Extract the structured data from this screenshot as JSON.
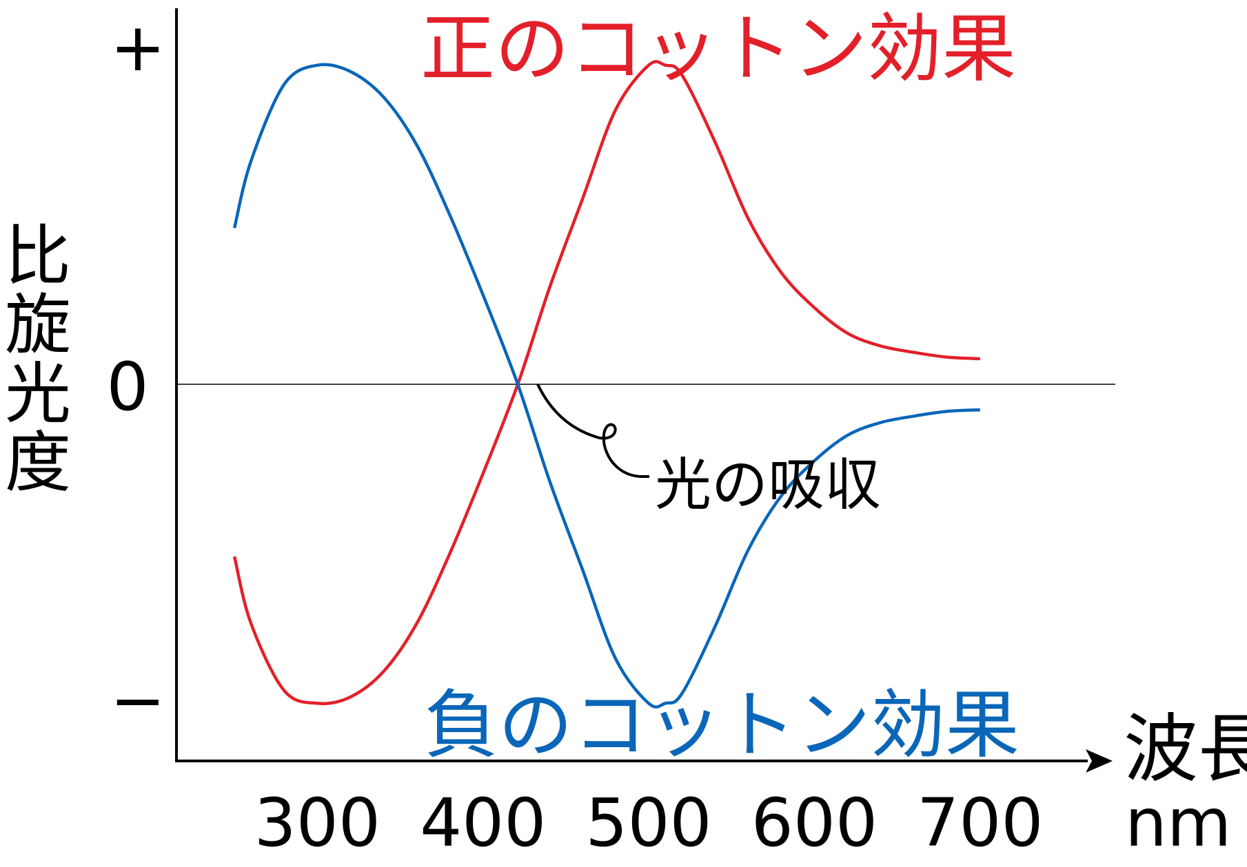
{
  "chart_data": {
    "type": "line",
    "xlabel": "波長",
    "xunit": "nm",
    "ylabel": "比旋光度",
    "xticks": [
      "300",
      "400",
      "500",
      "600",
      "700"
    ],
    "yticks": [
      "+",
      "0",
      "−"
    ],
    "xlim": [
      215,
      765
    ],
    "ylim": [
      -1.2,
      1.2
    ],
    "grid": false,
    "annotation": "光の吸収",
    "annotation_x": 421,
    "series": [
      {
        "name": "正のコットン効果",
        "color": "#e3202a",
        "x": [
          250,
          260,
          280,
          300,
          320,
          340,
          360,
          380,
          400,
          421,
          440,
          460,
          480,
          500,
          510,
          520,
          540,
          560,
          580,
          600,
          620,
          640,
          660,
          680,
          700
        ],
        "values": [
          -0.54,
          -0.75,
          -0.96,
          -1.0,
          -0.98,
          -0.9,
          -0.75,
          -0.53,
          -0.28,
          0.0,
          0.3,
          0.58,
          0.86,
          1.0,
          1.0,
          0.97,
          0.76,
          0.52,
          0.35,
          0.24,
          0.16,
          0.12,
          0.1,
          0.085,
          0.08
        ]
      },
      {
        "name": "負のコットン効果",
        "color": "#0a66b8",
        "x": [
          250,
          260,
          280,
          300,
          320,
          340,
          360,
          380,
          400,
          421,
          440,
          460,
          480,
          500,
          510,
          520,
          540,
          560,
          580,
          600,
          620,
          640,
          660,
          680,
          700
        ],
        "values": [
          0.49,
          0.7,
          0.94,
          1.0,
          0.98,
          0.9,
          0.75,
          0.53,
          0.28,
          0.0,
          -0.3,
          -0.58,
          -0.86,
          -1.0,
          -1.0,
          -0.97,
          -0.76,
          -0.52,
          -0.35,
          -0.24,
          -0.16,
          -0.12,
          -0.1,
          -0.085,
          -0.08
        ]
      }
    ]
  }
}
